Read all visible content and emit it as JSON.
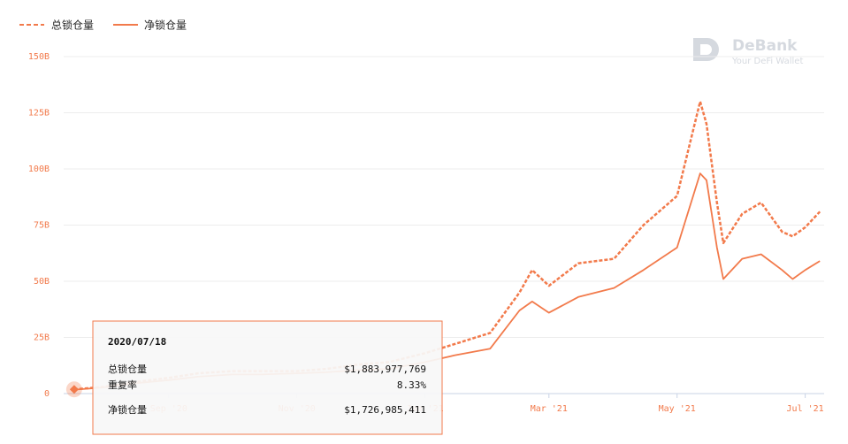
{
  "chart_data": {
    "type": "line",
    "brand": {
      "name": "DeBank",
      "tagline": "Your DeFi Wallet"
    },
    "x": [
      "2020/07/18",
      "2020/08/01",
      "2020/08/15",
      "2020/09/01",
      "2020/09/15",
      "2020/10/01",
      "2020/10/15",
      "2020/11/01",
      "2020/11/15",
      "2020/12/01",
      "2020/12/15",
      "2021/01/01",
      "2021/01/15",
      "2021/02/01",
      "2021/02/15",
      "2021/02/21",
      "2021/03/01",
      "2021/03/15",
      "2021/04/01",
      "2021/04/15",
      "2021/05/01",
      "2021/05/12",
      "2021/05/15",
      "2021/05/20",
      "2021/05/23",
      "2021/06/01",
      "2021/06/10",
      "2021/06/20",
      "2021/06/25",
      "2021/07/01",
      "2021/07/08"
    ],
    "series": [
      {
        "name": "总锁仓量",
        "color": "#f27a4b",
        "dash": true,
        "values": [
          1.884,
          3,
          5,
          7,
          9,
          10,
          10,
          10,
          11,
          13,
          14,
          18,
          22,
          27,
          45,
          55,
          48,
          58,
          60,
          75,
          88,
          130,
          120,
          85,
          67,
          80,
          85,
          72,
          70,
          74,
          81
        ]
      },
      {
        "name": "净锁仓量",
        "color": "#f27a4b",
        "dash": false,
        "values": [
          1.727,
          2.7,
          4.5,
          6,
          7.5,
          8.5,
          8.5,
          9,
          9.5,
          10.5,
          11,
          14,
          17,
          20,
          37,
          41,
          36,
          43,
          47,
          55,
          65,
          98,
          95,
          65,
          51,
          60,
          62,
          55,
          51,
          55,
          59
        ]
      }
    ],
    "xlim": [
      "2020/07/13",
      "2021/07/10"
    ],
    "xticks": [
      {
        "value": "2020/09",
        "label": "Sep '20"
      },
      {
        "value": "2020/11",
        "label": "Nov '20"
      },
      {
        "value": "2021/01",
        "label": "Jan '21"
      },
      {
        "value": "2021/03",
        "label": "Mar '21"
      },
      {
        "value": "2021/05",
        "label": "May '21"
      },
      {
        "value": "2021/07",
        "label": "Jul '21"
      }
    ],
    "ylim": [
      0,
      150
    ],
    "yticks": [
      0,
      {
        "value": 25,
        "label": "25B"
      },
      {
        "value": 50,
        "label": "50B"
      },
      {
        "value": 75,
        "label": "75B"
      },
      {
        "value": 100,
        "label": "100B"
      },
      {
        "value": 125,
        "label": "125B"
      },
      {
        "value": 150,
        "label": "150B"
      }
    ],
    "grid": true,
    "tooltip": {
      "date": "2020/07/18",
      "rows": [
        {
          "label": "总锁仓量",
          "value": "$1,883,977,769"
        },
        {
          "label": "重复率",
          "value": "8.33%"
        },
        {
          "label": "净锁仓量",
          "value": "$1,726,985,411"
        }
      ]
    }
  }
}
